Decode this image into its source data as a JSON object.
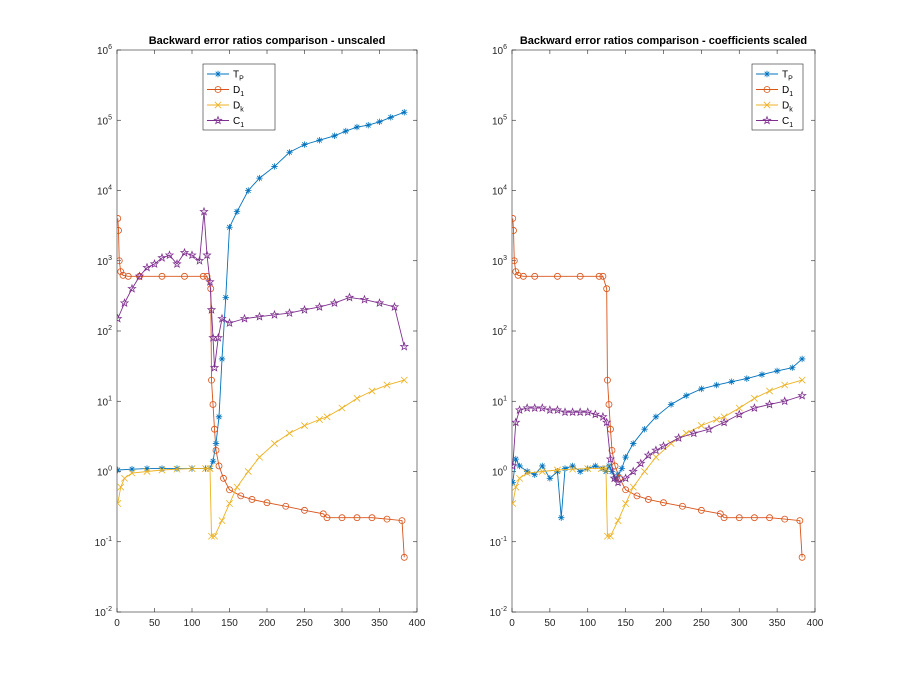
{
  "chart_data": [
    {
      "type": "line",
      "title": "Backward error ratios comparison - unscaled",
      "xlabel": "",
      "ylabel": "",
      "yscale": "log",
      "xlim": [
        0,
        400
      ],
      "ylim": [
        0.01,
        1000000
      ],
      "xticks": [
        0,
        50,
        100,
        150,
        200,
        250,
        300,
        350,
        400
      ],
      "yticks": [
        {
          "base": "10",
          "exp": "-2",
          "v": 0.01
        },
        {
          "base": "10",
          "exp": "-1",
          "v": 0.1
        },
        {
          "base": "10",
          "exp": "0",
          "v": 1
        },
        {
          "base": "10",
          "exp": "1",
          "v": 10
        },
        {
          "base": "10",
          "exp": "2",
          "v": 100
        },
        {
          "base": "10",
          "exp": "3",
          "v": 1000
        },
        {
          "base": "10",
          "exp": "4",
          "v": 10000
        },
        {
          "base": "10",
          "exp": "5",
          "v": 100000
        },
        {
          "base": "10",
          "exp": "6",
          "v": 1000000
        }
      ],
      "legend_position": "top-center",
      "series": [
        {
          "name": "T",
          "sub": "P",
          "color": "#0072BD",
          "marker": "asterisk",
          "x": [
            1,
            20,
            40,
            60,
            80,
            100,
            118,
            124,
            128,
            132,
            136,
            140,
            145,
            150,
            160,
            175,
            190,
            210,
            230,
            250,
            270,
            290,
            305,
            320,
            335,
            350,
            365,
            383
          ],
          "y": [
            1.05,
            1.08,
            1.1,
            1.1,
            1.1,
            1.1,
            1.1,
            1.1,
            1.4,
            2.5,
            6,
            40,
            300,
            3000,
            5000,
            10000,
            15000,
            22000,
            35000,
            45000,
            52000,
            60000,
            70000,
            80000,
            85000,
            95000,
            110000,
            130000
          ]
        },
        {
          "name": "D",
          "sub": "1",
          "color": "#D95319",
          "marker": "circle",
          "x": [
            1,
            2,
            3,
            5,
            8,
            15,
            30,
            60,
            90,
            115,
            120,
            125,
            126,
            128,
            130,
            132,
            136,
            142,
            150,
            165,
            180,
            200,
            225,
            250,
            275,
            280,
            300,
            320,
            340,
            360,
            380,
            383
          ],
          "y": [
            4000,
            2700,
            1000,
            700,
            620,
            600,
            600,
            600,
            600,
            600,
            600,
            400,
            20,
            9,
            4,
            2,
            1.2,
            0.8,
            0.55,
            0.45,
            0.4,
            0.36,
            0.32,
            0.28,
            0.25,
            0.22,
            0.22,
            0.22,
            0.22,
            0.21,
            0.2,
            0.06
          ]
        },
        {
          "name": "D",
          "sub": "k",
          "color": "#EDB120",
          "marker": "cross",
          "x": [
            1,
            5,
            10,
            20,
            40,
            60,
            80,
            100,
            118,
            124,
            126,
            130,
            140,
            150,
            160,
            175,
            190,
            210,
            230,
            250,
            270,
            280,
            300,
            320,
            340,
            360,
            383
          ],
          "y": [
            0.35,
            0.6,
            0.8,
            0.95,
            1.0,
            1.05,
            1.08,
            1.1,
            1.1,
            1.1,
            0.12,
            0.12,
            0.2,
            0.35,
            0.6,
            1.0,
            1.6,
            2.5,
            3.5,
            4.5,
            5.5,
            6,
            8,
            11,
            14,
            17,
            20
          ]
        },
        {
          "name": "C",
          "sub": "1",
          "color": "#7E2F8E",
          "marker": "pentagram",
          "x": [
            1,
            10,
            20,
            30,
            40,
            50,
            60,
            70,
            80,
            90,
            100,
            110,
            116,
            120,
            124,
            126,
            128,
            130,
            135,
            140,
            150,
            170,
            190,
            210,
            230,
            250,
            270,
            290,
            310,
            330,
            350,
            370,
            383
          ],
          "y": [
            150,
            250,
            400,
            600,
            800,
            900,
            1100,
            1200,
            900,
            1300,
            1200,
            1000,
            5000,
            1200,
            500,
            200,
            80,
            30,
            80,
            150,
            130,
            150,
            160,
            170,
            180,
            200,
            220,
            250,
            300,
            280,
            250,
            220,
            60
          ]
        }
      ]
    },
    {
      "type": "line",
      "title": "Backward error ratios comparison - coefficients scaled",
      "xlabel": "",
      "ylabel": "",
      "yscale": "log",
      "xlim": [
        0,
        400
      ],
      "ylim": [
        0.01,
        1000000
      ],
      "xticks": [
        0,
        50,
        100,
        150,
        200,
        250,
        300,
        350,
        400
      ],
      "yticks": [
        {
          "base": "10",
          "exp": "-2",
          "v": 0.01
        },
        {
          "base": "10",
          "exp": "-1",
          "v": 0.1
        },
        {
          "base": "10",
          "exp": "0",
          "v": 1
        },
        {
          "base": "10",
          "exp": "1",
          "v": 10
        },
        {
          "base": "10",
          "exp": "2",
          "v": 100
        },
        {
          "base": "10",
          "exp": "3",
          "v": 1000
        },
        {
          "base": "10",
          "exp": "4",
          "v": 10000
        },
        {
          "base": "10",
          "exp": "5",
          "v": 100000
        },
        {
          "base": "10",
          "exp": "6",
          "v": 1000000
        }
      ],
      "legend_position": "top-right",
      "series": [
        {
          "name": "T",
          "sub": "P",
          "color": "#0072BD",
          "marker": "asterisk",
          "x": [
            1,
            5,
            10,
            20,
            30,
            40,
            50,
            60,
            65,
            70,
            80,
            90,
            100,
            110,
            120,
            124,
            128,
            132,
            136,
            140,
            145,
            150,
            160,
            175,
            190,
            210,
            230,
            250,
            270,
            290,
            310,
            330,
            350,
            370,
            383
          ],
          "y": [
            0.7,
            1.5,
            1.2,
            1.0,
            0.9,
            1.2,
            0.8,
            1.0,
            0.22,
            1.1,
            1.2,
            1.0,
            1.1,
            1.2,
            1.1,
            1.0,
            1.2,
            1.0,
            0.8,
            0.9,
            1.1,
            1.6,
            2.5,
            4,
            6,
            9,
            12,
            15,
            17,
            19,
            21,
            24,
            27,
            30,
            40
          ]
        },
        {
          "name": "D",
          "sub": "1",
          "color": "#D95319",
          "marker": "circle",
          "x": [
            1,
            2,
            3,
            5,
            8,
            15,
            30,
            60,
            90,
            115,
            120,
            125,
            126,
            128,
            130,
            132,
            136,
            142,
            150,
            165,
            180,
            200,
            225,
            250,
            275,
            280,
            300,
            320,
            340,
            360,
            380,
            383
          ],
          "y": [
            4000,
            2700,
            1000,
            700,
            620,
            600,
            600,
            600,
            600,
            600,
            600,
            400,
            20,
            9,
            4,
            2,
            1.2,
            0.8,
            0.55,
            0.45,
            0.4,
            0.36,
            0.32,
            0.28,
            0.25,
            0.22,
            0.22,
            0.22,
            0.22,
            0.21,
            0.2,
            0.06
          ]
        },
        {
          "name": "D",
          "sub": "k",
          "color": "#EDB120",
          "marker": "cross",
          "x": [
            1,
            5,
            10,
            20,
            40,
            60,
            80,
            100,
            118,
            124,
            126,
            130,
            140,
            150,
            160,
            175,
            190,
            210,
            230,
            250,
            270,
            280,
            300,
            320,
            340,
            360,
            383
          ],
          "y": [
            0.35,
            0.6,
            0.8,
            0.95,
            1.0,
            1.05,
            1.08,
            1.1,
            1.1,
            1.1,
            0.12,
            0.12,
            0.2,
            0.35,
            0.6,
            1.0,
            1.6,
            2.5,
            3.5,
            4.5,
            5.5,
            6,
            8,
            11,
            14,
            17,
            20
          ]
        },
        {
          "name": "C",
          "sub": "1",
          "color": "#7E2F8E",
          "marker": "pentagram",
          "x": [
            1,
            5,
            10,
            20,
            30,
            40,
            50,
            60,
            70,
            80,
            90,
            100,
            110,
            120,
            125,
            130,
            135,
            140,
            150,
            160,
            170,
            180,
            190,
            200,
            220,
            240,
            260,
            280,
            300,
            320,
            340,
            360,
            383
          ],
          "y": [
            1.2,
            5,
            7.5,
            8,
            8,
            8,
            7.5,
            7.5,
            7,
            7,
            7,
            7,
            6.5,
            6,
            5,
            1.5,
            0.8,
            0.7,
            0.8,
            1.0,
            1.3,
            1.7,
            2.0,
            2.3,
            3.0,
            3.5,
            4.0,
            5.0,
            6.5,
            8,
            9,
            10,
            12
          ]
        }
      ]
    }
  ]
}
